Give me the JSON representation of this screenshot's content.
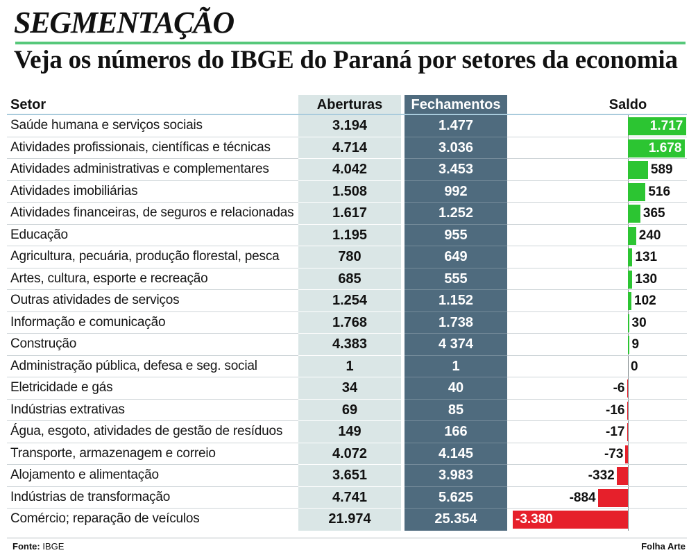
{
  "title": "SEGMENTAÇÃO",
  "subtitle": "Veja os números do IBGE do Paraná por setores da economia",
  "colors": {
    "title_rule": "#56c87a",
    "header_rule": "#a9cbdc",
    "aberturas_column": "#dae6e6",
    "fechamentos_column": "#4f6b7e",
    "positive_bar": "#2cc532",
    "negative_bar": "#e6202b"
  },
  "chart_data": {
    "type": "table",
    "columns": [
      "Setor",
      "Aberturas",
      "Fechamentos",
      "Saldo"
    ],
    "rows": [
      {
        "setor": "Saúde humana e serviços sociais",
        "aberturas": "3.194",
        "fechamentos": "1.477",
        "saldo": "1.717"
      },
      {
        "setor": "Atividades profissionais, científicas e técnicas",
        "aberturas": "4.714",
        "fechamentos": "3.036",
        "saldo": "1.678"
      },
      {
        "setor": "Atividades administrativas e complementares",
        "aberturas": "4.042",
        "fechamentos": "3.453",
        "saldo": "589"
      },
      {
        "setor": "Atividades imobiliárias",
        "aberturas": "1.508",
        "fechamentos": "992",
        "saldo": "516"
      },
      {
        "setor": "Atividades financeiras, de seguros e relacionadas",
        "aberturas": "1.617",
        "fechamentos": "1.252",
        "saldo": "365"
      },
      {
        "setor": "Educação",
        "aberturas": "1.195",
        "fechamentos": "955",
        "saldo": "240"
      },
      {
        "setor": "Agricultura, pecuária, produção florestal, pesca",
        "aberturas": "780",
        "fechamentos": "649",
        "saldo": "131"
      },
      {
        "setor": "Artes, cultura, esporte e recreação",
        "aberturas": "685",
        "fechamentos": "555",
        "saldo": "130"
      },
      {
        "setor": "Outras atividades de serviços",
        "aberturas": "1.254",
        "fechamentos": "1.152",
        "saldo": "102"
      },
      {
        "setor": "Informação e comunicação",
        "aberturas": "1.768",
        "fechamentos": "1.738",
        "saldo": "30"
      },
      {
        "setor": "Construção",
        "aberturas": "4.383",
        "fechamentos": "4 374",
        "saldo": "9"
      },
      {
        "setor": "Administração pública, defesa e seg. social",
        "aberturas": "1",
        "fechamentos": "1",
        "saldo": "0"
      },
      {
        "setor": "Eletricidade e gás",
        "aberturas": "34",
        "fechamentos": "40",
        "saldo": "-6"
      },
      {
        "setor": "Indústrias extrativas",
        "aberturas": "69",
        "fechamentos": "85",
        "saldo": "-16"
      },
      {
        "setor": "Água, esgoto, atividades de gestão de resíduos",
        "aberturas": "149",
        "fechamentos": "166",
        "saldo": "-17"
      },
      {
        "setor": "Transporte, armazenagem e correio",
        "aberturas": "4.072",
        "fechamentos": "4.145",
        "saldo": "-73"
      },
      {
        "setor": "Alojamento e alimentação",
        "aberturas": "3.651",
        "fechamentos": "3.983",
        "saldo": "-332"
      },
      {
        "setor": "Indústrias de transformação",
        "aberturas": "4.741",
        "fechamentos": "5.625",
        "saldo": "-884"
      },
      {
        "setor": "Comércio; reparação de veículos",
        "aberturas": "21.974",
        "fechamentos": "25.354",
        "saldo": "-3.380"
      }
    ]
  },
  "footer": {
    "source_label": "Fonte:",
    "source": "IBGE",
    "credit": "Folha Arte"
  }
}
